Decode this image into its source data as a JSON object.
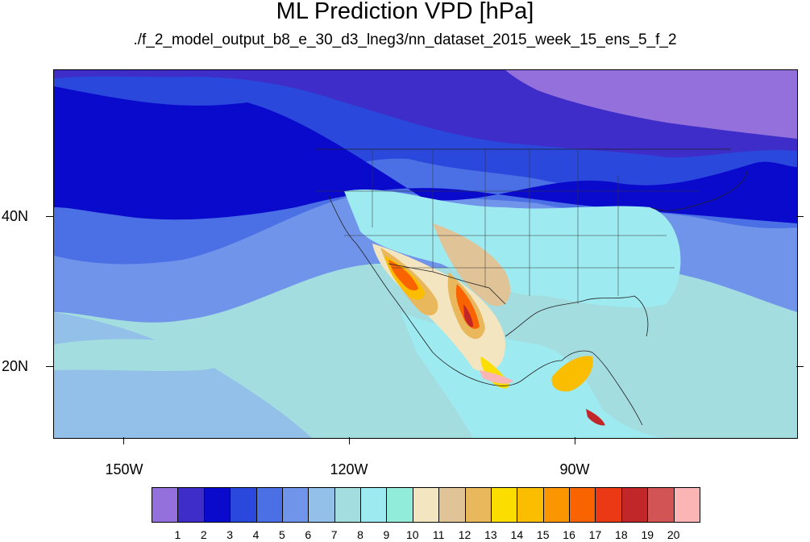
{
  "header": {
    "title": "ML Prediction VPD [hPa]",
    "subtitle": "./f_2_model_output_b8_e_30_d3_lneg3/nn_dataset_2015_week_15_ens_5_f_2"
  },
  "map": {
    "lon_ticks": [
      "150W",
      "120W",
      "90W"
    ],
    "lat_ticks": [
      "40N",
      "20N"
    ]
  },
  "colorbar": {
    "labels": [
      "1",
      "2",
      "3",
      "4",
      "5",
      "6",
      "7",
      "8",
      "9",
      "10",
      "11",
      "12",
      "13",
      "14",
      "15",
      "16",
      "17",
      "18",
      "19",
      "20"
    ],
    "colors": [
      "#9370db",
      "#3e2dc8",
      "#0a0acd",
      "#2b48dc",
      "#4b70e6",
      "#7094ea",
      "#92c0e8",
      "#a4dde0",
      "#9deaf0",
      "#91ecd9",
      "#f3e5c0",
      "#e0c397",
      "#e9b85c",
      "#fcdd00",
      "#fbbd00",
      "#fb9600",
      "#f96400",
      "#eb3815",
      "#c12728",
      "#d25455",
      "#fbb5b5"
    ]
  }
}
